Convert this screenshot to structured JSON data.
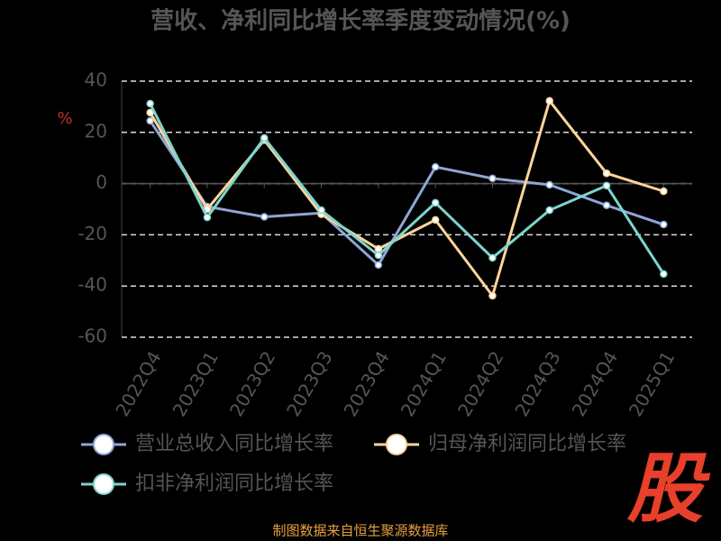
{
  "chart_data": {
    "type": "line",
    "title": "营收、净利同比增长率季度变动情况(%)",
    "y_label": "%",
    "source": "制图数据来自恒生聚源数据库",
    "logo": "股",
    "categories": [
      "2022Q4",
      "2023Q1",
      "2023Q2",
      "2023Q3",
      "2023Q4",
      "2024Q1",
      "2024Q2",
      "2024Q3",
      "2024Q4",
      "2025Q1"
    ],
    "series": [
      {
        "name": "营业总收入同比增长率",
        "color": "#8fa6d6",
        "values": [
          24.5,
          -9,
          -13,
          -11.5,
          -31.8,
          6.5,
          2,
          -0.5,
          -8.5,
          -16
        ]
      },
      {
        "name": "归母净利润同比增长率",
        "color": "#ffd49a",
        "values": [
          27.7,
          -10,
          17,
          -12,
          -25.5,
          -14.2,
          -43.8,
          32.3,
          4,
          -3
        ]
      },
      {
        "name": "扣非净利润同比增长率",
        "color": "#7ed4cf",
        "values": [
          31.2,
          -13.2,
          17.8,
          -10.4,
          -28,
          -7.5,
          -29,
          -10.4,
          -0.8,
          -35.3
        ]
      }
    ],
    "ylim": [
      -60,
      40
    ],
    "yticks": [
      -60,
      -40,
      -20,
      0,
      20,
      40
    ],
    "grid": true
  }
}
